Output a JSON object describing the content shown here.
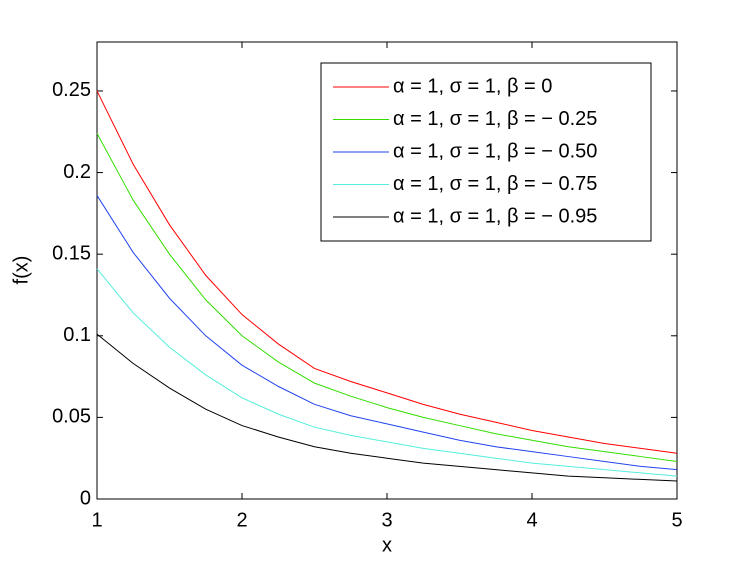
{
  "chart_data": {
    "type": "line",
    "x_label": "x",
    "y_label": "f(x)",
    "x": [
      1,
      1.25,
      1.5,
      1.75,
      2,
      2.25,
      2.5,
      2.75,
      3,
      3.25,
      3.5,
      3.75,
      4,
      4.25,
      4.5,
      4.75,
      5
    ],
    "series": [
      {
        "name": "α = 1, σ = 1, β = 0",
        "color": "#ff0000",
        "values": [
          0.25,
          0.205,
          0.168,
          0.137,
          0.113,
          0.095,
          0.08,
          0.072,
          0.065,
          0.058,
          0.052,
          0.047,
          0.042,
          0.038,
          0.034,
          0.031,
          0.028
        ]
      },
      {
        "name": "α = 1, σ = 1, β = − 0.25",
        "color": "#33dd00",
        "values": [
          0.224,
          0.183,
          0.15,
          0.122,
          0.1,
          0.084,
          0.071,
          0.063,
          0.056,
          0.05,
          0.045,
          0.04,
          0.036,
          0.032,
          0.029,
          0.026,
          0.023
        ]
      },
      {
        "name": "α = 1, σ = 1, β = − 0.50",
        "color": "#2244ee",
        "values": [
          0.186,
          0.151,
          0.123,
          0.1,
          0.082,
          0.069,
          0.058,
          0.051,
          0.046,
          0.041,
          0.036,
          0.032,
          0.029,
          0.026,
          0.023,
          0.02,
          0.018
        ]
      },
      {
        "name": "α = 1, σ = 1, β = − 0.75",
        "color": "#55eedd",
        "values": [
          0.141,
          0.114,
          0.093,
          0.076,
          0.062,
          0.052,
          0.044,
          0.039,
          0.035,
          0.031,
          0.028,
          0.025,
          0.022,
          0.02,
          0.018,
          0.016,
          0.014
        ]
      },
      {
        "name": "α = 1, σ = 1, β = − 0.95",
        "color": "#000000",
        "values": [
          0.101,
          0.083,
          0.068,
          0.055,
          0.045,
          0.038,
          0.032,
          0.028,
          0.025,
          0.022,
          0.02,
          0.018,
          0.016,
          0.014,
          0.013,
          0.012,
          0.011
        ]
      }
    ],
    "xlim": [
      1,
      5
    ],
    "xticks": [
      1,
      2,
      3,
      4,
      5
    ],
    "ylim": [
      0,
      0.28
    ],
    "yticks": [
      0,
      0.05,
      0.1,
      0.15,
      0.2,
      0.25
    ],
    "grid": false,
    "legend": "upper right"
  }
}
